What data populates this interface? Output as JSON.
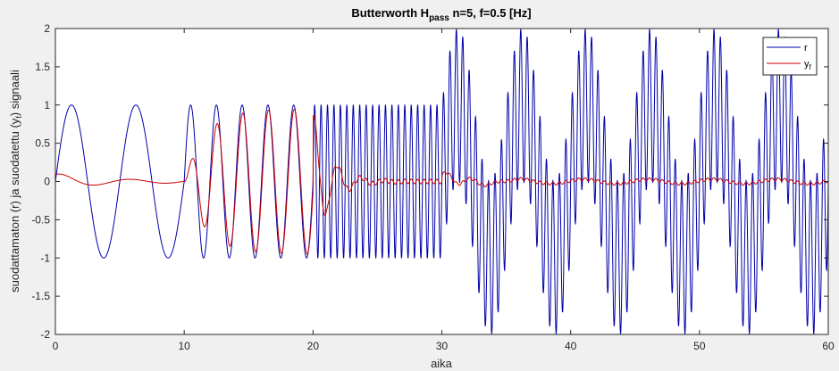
{
  "figure": {
    "background": "#f0f0f0"
  },
  "chart_data": {
    "type": "line",
    "title": {
      "prefix": "Butterworth H",
      "subscript": "pass",
      "suffix": " n=5, f=0.5 [Hz]"
    },
    "xlabel": "aika",
    "ylabel": "suodattamaton (r) ja suodatettu (yₓ) signaali",
    "ylabel_parts": [
      "suodattamaton (r) ja suodatettu (y",
      "f",
      ") signaali"
    ],
    "xlim": [
      0,
      60
    ],
    "ylim": [
      -2,
      2
    ],
    "xticks": [
      0,
      10,
      20,
      30,
      40,
      50,
      60
    ],
    "yticks": [
      -2,
      -1.5,
      -1,
      -0.5,
      0,
      0.5,
      1,
      1.5,
      2
    ],
    "ytick_labels": [
      "-2",
      "-1.5",
      "-1",
      "-0.5",
      "0",
      "0.5",
      "1",
      "1.5",
      "2"
    ],
    "grid": false,
    "legend_position": "top-right",
    "series": [
      {
        "name": "r",
        "color": "#0000aa",
        "description": "input: sin at 0.2 Hz (0-10s), 0.5 Hz (10-20s), 2 Hz (20-30s), sum of 2 Hz and 0.2 Hz amplitude 1 each (30-60s)",
        "segments": [
          {
            "t0": 0,
            "t1": 10,
            "components": [
              {
                "amp": 1,
                "freq": 0.2
              }
            ]
          },
          {
            "t0": 10,
            "t1": 20,
            "components": [
              {
                "amp": 1,
                "freq": 0.5
              }
            ]
          },
          {
            "t0": 20,
            "t1": 30,
            "components": [
              {
                "amp": 1,
                "freq": 2.0
              }
            ]
          },
          {
            "t0": 30,
            "t1": 60,
            "components": [
              {
                "amp": 1,
                "freq": 2.0
              },
              {
                "amp": 1,
                "freq": 0.2
              }
            ]
          }
        ]
      },
      {
        "name": "y",
        "name_subscript": "f",
        "color": "#cc0000",
        "description": "band-pass filtered output: passes 0.5 Hz, transients at segment changes"
      }
    ]
  },
  "legend": {
    "items": [
      {
        "label": "r",
        "sub": "",
        "color": "#0000aa"
      },
      {
        "label": "y",
        "sub": "f",
        "color": "#cc0000"
      }
    ]
  }
}
